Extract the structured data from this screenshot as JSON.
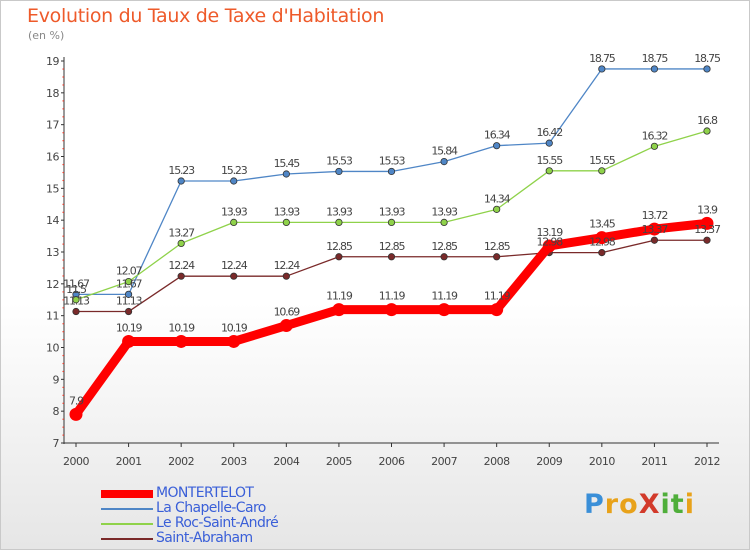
{
  "title": "Evolution du Taux de Taxe d'Habitation",
  "subtitle": "(en %)",
  "brand": {
    "letters": [
      {
        "ch": "P",
        "color": "#3a8fd8"
      },
      {
        "ch": "r",
        "color": "#e8a21a"
      },
      {
        "ch": "o",
        "color": "#e8a21a"
      },
      {
        "ch": "X",
        "color": "#d23a2a"
      },
      {
        "ch": "i",
        "color": "#4fae3a"
      },
      {
        "ch": "t",
        "color": "#4fae3a"
      },
      {
        "ch": "i",
        "color": "#e8a21a"
      }
    ]
  },
  "chart_data": {
    "type": "line",
    "x": [
      2000,
      2001,
      2002,
      2003,
      2004,
      2005,
      2006,
      2007,
      2008,
      2009,
      2010,
      2011,
      2012
    ],
    "ylim": [
      7,
      19
    ],
    "yticks": [
      7,
      8,
      9,
      10,
      11,
      12,
      13,
      14,
      15,
      16,
      17,
      18,
      19
    ],
    "grid": false,
    "legend_position": "bottom-left",
    "series": [
      {
        "name": "La Chapelle-Caro",
        "color": "#4f86c6",
        "values": [
          11.67,
          11.67,
          15.23,
          15.23,
          15.45,
          15.53,
          15.53,
          15.84,
          16.34,
          16.42,
          18.75,
          18.75,
          18.75
        ],
        "labels": [
          "11.67",
          "11.67",
          "15.23",
          "15.23",
          "15.45",
          "15.53",
          "15.53",
          "15.84",
          "16.34",
          "16.42",
          "18.75",
          "18.75",
          "18.75"
        ]
      },
      {
        "name": "Le Roc-Saint-André",
        "color": "#8fd24a",
        "values": [
          11.5,
          12.07,
          13.27,
          13.93,
          13.93,
          13.93,
          13.93,
          13.93,
          14.34,
          15.55,
          15.55,
          16.32,
          16.8
        ],
        "labels": [
          "11.5",
          "12.07",
          "13.27",
          "13.93",
          "13.93",
          "13.93",
          "13.93",
          "13.93",
          "14.34",
          "15.55",
          "15.55",
          "16.32",
          "16.8"
        ]
      },
      {
        "name": "Saint-Abraham",
        "color": "#7a2a2a",
        "values": [
          11.13,
          11.13,
          12.24,
          12.24,
          12.24,
          12.85,
          12.85,
          12.85,
          12.85,
          12.98,
          12.98,
          13.37,
          13.37
        ],
        "labels": [
          "11.13",
          "11.13",
          "12.24",
          "12.24",
          "12.24",
          "12.85",
          "12.85",
          "12.85",
          "12.85",
          "12.98",
          "12.98",
          "13.37",
          "13.37"
        ]
      },
      {
        "name": "MONTERTELOT",
        "color": "#ff0000",
        "values": [
          7.9,
          10.19,
          10.19,
          10.19,
          10.69,
          11.19,
          11.19,
          11.19,
          11.19,
          13.19,
          13.45,
          13.72,
          13.9
        ],
        "labels": [
          "7.9",
          "10.19",
          "10.19",
          "10.19",
          "10.69",
          "11.19",
          "11.19",
          "11.19",
          "11.19",
          "13.19",
          "13.45",
          "13.72",
          "13.9"
        ]
      }
    ],
    "legend": [
      {
        "name": "MONTERTELOT",
        "color": "#ff0000",
        "text_color": "#3a5fd8"
      },
      {
        "name": "La Chapelle-Caro",
        "color": "#4f86c6",
        "text_color": "#3a5fd8"
      },
      {
        "name": "Le Roc-Saint-André",
        "color": "#8fd24a",
        "text_color": "#3a5fd8"
      },
      {
        "name": "Saint-Abraham",
        "color": "#7a2a2a",
        "text_color": "#3a5fd8"
      }
    ]
  }
}
